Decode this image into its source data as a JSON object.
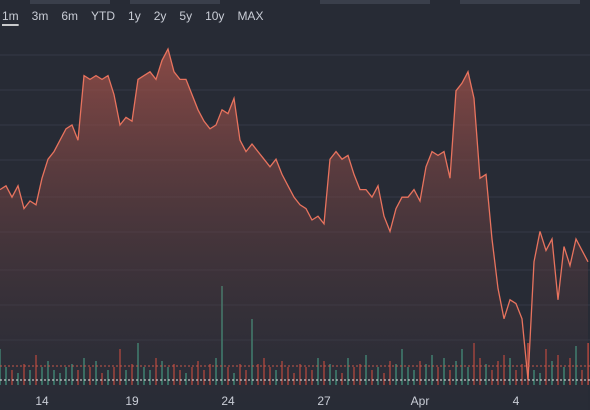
{
  "chart_data": {
    "type": "area",
    "ranges": [
      "1m",
      "3m",
      "6m",
      "YTD",
      "1y",
      "2y",
      "5y",
      "10y",
      "MAX"
    ],
    "selected_range": "1m",
    "categories": [
      null,
      null,
      null,
      null,
      null,
      null,
      null,
      "14",
      null,
      null,
      null,
      null,
      null,
      null,
      null,
      null,
      null,
      null,
      null,
      null,
      null,
      null,
      "19",
      null,
      null,
      null,
      null,
      null,
      null,
      null,
      null,
      null,
      null,
      null,
      null,
      null,
      null,
      null,
      "24",
      null,
      null,
      null,
      null,
      null,
      null,
      null,
      null,
      null,
      null,
      null,
      null,
      null,
      null,
      null,
      "27",
      null,
      null,
      null,
      null,
      null,
      null,
      null,
      null,
      null,
      null,
      null,
      null,
      null,
      null,
      null,
      "Apr",
      null,
      null,
      null,
      null,
      null,
      null,
      null,
      null,
      null,
      null,
      null,
      null,
      null,
      null,
      null,
      "4",
      null,
      null,
      null,
      null,
      null,
      null,
      null,
      null,
      null,
      null,
      null,
      null
    ],
    "values": [
      58,
      59,
      56,
      59,
      53,
      55,
      54,
      61,
      66,
      68,
      71,
      74,
      75,
      71,
      88,
      87,
      88,
      87,
      88,
      83,
      75,
      77,
      76,
      87,
      88,
      89,
      87,
      92,
      95,
      89,
      87,
      87,
      83,
      79,
      76,
      74,
      75,
      79,
      78,
      82,
      71,
      68,
      70,
      68,
      66,
      64,
      66,
      62,
      59,
      56,
      54,
      53,
      50,
      51,
      49,
      66,
      68,
      66,
      67,
      62,
      58,
      58,
      56,
      59,
      51,
      47,
      53,
      56,
      56,
      58,
      55,
      64,
      68,
      67,
      68,
      61,
      84,
      86,
      89,
      82,
      61,
      62,
      45,
      32,
      24,
      29,
      28,
      24,
      8,
      39,
      47,
      42,
      45,
      29,
      43,
      38,
      45,
      42,
      39
    ],
    "ylim": [
      0,
      100
    ],
    "color": "#e8735e",
    "volume": {
      "values": [
        12,
        6,
        5,
        4,
        7,
        5,
        10,
        6,
        8,
        5,
        4,
        6,
        7,
        5,
        9,
        6,
        8,
        4,
        5,
        6,
        12,
        5,
        7,
        14,
        6,
        5,
        9,
        8,
        6,
        7,
        5,
        4,
        6,
        8,
        5,
        7,
        9,
        33,
        6,
        4,
        7,
        5,
        22,
        7,
        9,
        6,
        5,
        8,
        6,
        4,
        7,
        6,
        5,
        9,
        8,
        7,
        5,
        4,
        9,
        6,
        7,
        10,
        5,
        6,
        4,
        8,
        7,
        12,
        6,
        5,
        8,
        7,
        10,
        6,
        9,
        5,
        8,
        12,
        6,
        14,
        9,
        7,
        5,
        8,
        10,
        9,
        5,
        7,
        14,
        5,
        4,
        12,
        8,
        10,
        6,
        9,
        13,
        5,
        14
      ],
      "ylim": [
        0,
        100
      ],
      "up_color": "#3f8f7a",
      "down_color": "#b2473c"
    }
  }
}
